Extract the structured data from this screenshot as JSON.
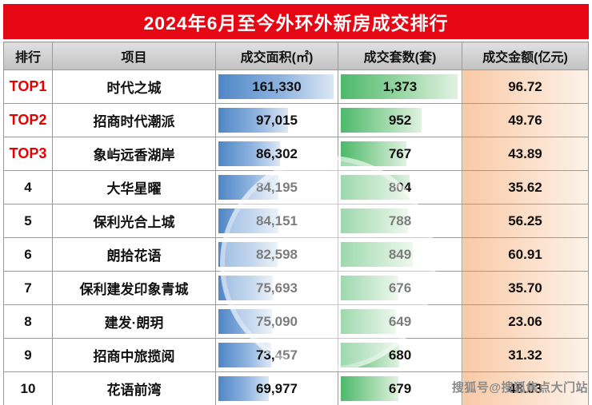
{
  "title": "2024年6月至今外环外新房成交排行",
  "columns": [
    "排行",
    "项目",
    "成交面积(㎡)",
    "成交套数(套)",
    "成交金额(亿元)"
  ],
  "rows": [
    {
      "rank": "TOP1",
      "project": "时代之城",
      "area": "161,330",
      "units": "1,373",
      "amount": "96.72"
    },
    {
      "rank": "TOP2",
      "project": "招商时代潮派",
      "area": "97,015",
      "units": "952",
      "amount": "49.76"
    },
    {
      "rank": "TOP3",
      "project": "象屿远香湖岸",
      "area": "86,302",
      "units": "767",
      "amount": "43.89"
    },
    {
      "rank": "4",
      "project": "大华星曜",
      "area": "84,195",
      "units": "804",
      "amount": "35.62"
    },
    {
      "rank": "5",
      "project": "保利光合上城",
      "area": "84,151",
      "units": "788",
      "amount": "56.25"
    },
    {
      "rank": "6",
      "project": "朗拾花语",
      "area": "82,598",
      "units": "849",
      "amount": "60.91"
    },
    {
      "rank": "7",
      "project": "保利建发印象青城",
      "area": "75,693",
      "units": "676",
      "amount": "35.70"
    },
    {
      "rank": "8",
      "project": "建发·朗玥",
      "area": "75,090",
      "units": "649",
      "amount": "23.06"
    },
    {
      "rank": "9",
      "project": "招商中旅揽阅",
      "area": "73,457",
      "units": "680",
      "amount": "31.32"
    },
    {
      "rank": "10",
      "project": "花语前湾",
      "area": "69,977",
      "units": "679",
      "amount": "48.03"
    }
  ],
  "watermark": "搜狐号@搜狐焦点大门站",
  "colors": {
    "title_bg": "#e50713",
    "top_rank_text": "#e60000",
    "area_bar": "#4f86c6",
    "units_bar": "#4cb96a",
    "amount_fill": "#f9c9a6"
  },
  "chart_data": {
    "type": "table",
    "title": "2024年6月至今外环外新房成交排行",
    "columns": [
      "排行",
      "项目",
      "成交面积(㎡)",
      "成交套数(套)",
      "成交金额(亿元)"
    ],
    "rows": [
      [
        "TOP1",
        "时代之城",
        161330,
        1373,
        96.72
      ],
      [
        "TOP2",
        "招商时代潮派",
        97015,
        952,
        49.76
      ],
      [
        "TOP3",
        "象屿远香湖岸",
        86302,
        767,
        43.89
      ],
      [
        "4",
        "大华星曜",
        84195,
        804,
        35.62
      ],
      [
        "5",
        "保利光合上城",
        84151,
        788,
        56.25
      ],
      [
        "6",
        "朗拾花语",
        82598,
        849,
        60.91
      ],
      [
        "7",
        "保利建发印象青城",
        75693,
        676,
        35.7
      ],
      [
        "8",
        "建发·朗玥",
        75090,
        649,
        23.06
      ],
      [
        "9",
        "招商中旅揽阅",
        73457,
        680,
        31.32
      ],
      [
        "10",
        "花语前湾",
        69977,
        679,
        48.03
      ]
    ],
    "layout_hints": {
      "area_column_databar": "blue, proportional to value, max 161330",
      "units_column_databar": "green, proportional to value, max 1373",
      "amount_column_fill": "full-width peach gradient"
    }
  }
}
